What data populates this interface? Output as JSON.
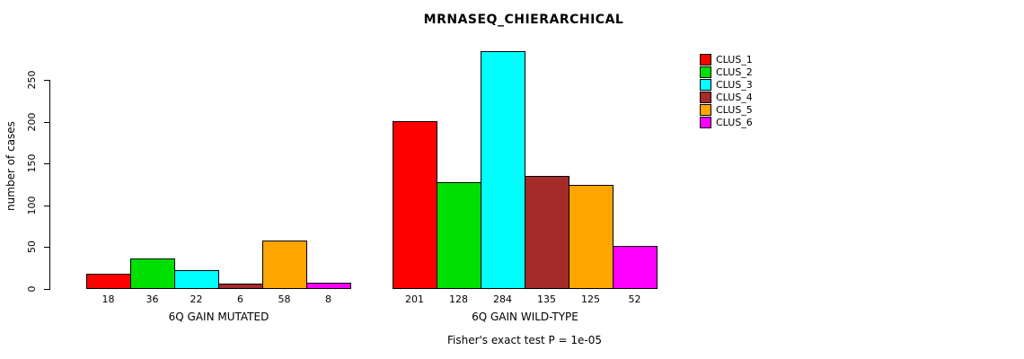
{
  "title": "MRNASEQ_CHIERARCHICAL",
  "chart_data": {
    "type": "bar",
    "title": "MRNASEQ_CHIERARCHICAL",
    "ylabel": "number of cases",
    "xlabel": "",
    "yticks": [
      0,
      50,
      100,
      150,
      200,
      250
    ],
    "ylim": [
      0,
      290
    ],
    "grid": false,
    "legend_position": "right",
    "categories": [
      "6Q GAIN MUTATED",
      "6Q GAIN WILD-TYPE"
    ],
    "groups": [
      {
        "label": "6Q GAIN MUTATED",
        "values": [
          18,
          36,
          22,
          6,
          58,
          8
        ]
      },
      {
        "label": "6Q GAIN WILD-TYPE",
        "values": [
          201,
          128,
          284,
          135,
          125,
          52
        ]
      }
    ],
    "series": [
      {
        "name": "CLUS_1",
        "color": "#FF0000",
        "values": [
          18,
          201
        ]
      },
      {
        "name": "CLUS_2",
        "color": "#00E000",
        "values": [
          36,
          128
        ]
      },
      {
        "name": "CLUS_3",
        "color": "#00FFFF",
        "values": [
          22,
          284
        ]
      },
      {
        "name": "CLUS_4",
        "color": "#A52A2A",
        "values": [
          6,
          135
        ]
      },
      {
        "name": "CLUS_5",
        "color": "#FFA500",
        "values": [
          58,
          125
        ]
      },
      {
        "name": "CLUS_6",
        "color": "#FF00FF",
        "values": [
          8,
          52
        ]
      }
    ],
    "annotation": "Fisher's exact test P = 1e-05"
  }
}
